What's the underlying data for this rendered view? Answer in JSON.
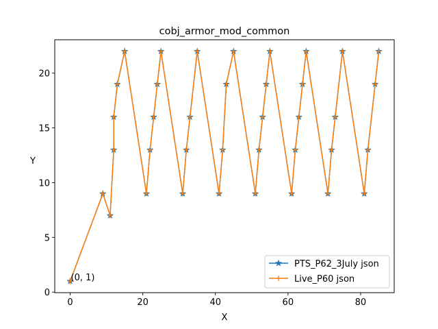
{
  "chart_data": {
    "type": "line",
    "title": "cobj_armor_mod_common",
    "xlabel": "X",
    "ylabel": "Y",
    "xlim": [
      -4.25,
      89.25
    ],
    "ylim": [
      -0.05,
      23.05
    ],
    "xticks": [
      0,
      20,
      40,
      60,
      80
    ],
    "yticks": [
      0,
      5,
      10,
      15,
      20
    ],
    "grid": false,
    "legend_position": "lower right",
    "annotation": {
      "text": "(0, 1)",
      "x": 0,
      "y": 1
    },
    "series": [
      {
        "name": "PTS_P62_3July json",
        "color": "#1f77b4",
        "marker": "star",
        "x": [
          0,
          9,
          11,
          12,
          12,
          13,
          15,
          21,
          22,
          23,
          24,
          25,
          31,
          32,
          33,
          35,
          41,
          42,
          43,
          45,
          51,
          52,
          53,
          54,
          55,
          61,
          62,
          63,
          64,
          65,
          71,
          72,
          73,
          75,
          81,
          82,
          84,
          85
        ],
        "y": [
          1,
          9,
          7,
          13,
          16,
          19,
          22,
          9,
          13,
          16,
          19,
          22,
          9,
          13,
          16,
          22,
          9,
          13,
          19,
          22,
          9,
          13,
          16,
          19,
          22,
          9,
          13,
          16,
          19,
          22,
          9,
          13,
          16,
          22,
          9,
          13,
          19,
          22
        ]
      },
      {
        "name": "Live_P60 json",
        "color": "#ff7f0e",
        "marker": "plus",
        "x": [
          0,
          9,
          11,
          12,
          12,
          13,
          15,
          21,
          22,
          23,
          24,
          25,
          31,
          32,
          33,
          35,
          41,
          42,
          43,
          45,
          51,
          52,
          53,
          54,
          55,
          61,
          62,
          63,
          64,
          65,
          71,
          72,
          73,
          75,
          81,
          82,
          84,
          85
        ],
        "y": [
          1,
          9,
          7,
          13,
          16,
          19,
          22,
          9,
          13,
          16,
          19,
          22,
          9,
          13,
          16,
          22,
          9,
          13,
          19,
          22,
          9,
          13,
          16,
          19,
          22,
          9,
          13,
          16,
          19,
          22,
          9,
          13,
          16,
          22,
          9,
          13,
          19,
          22
        ]
      }
    ]
  }
}
